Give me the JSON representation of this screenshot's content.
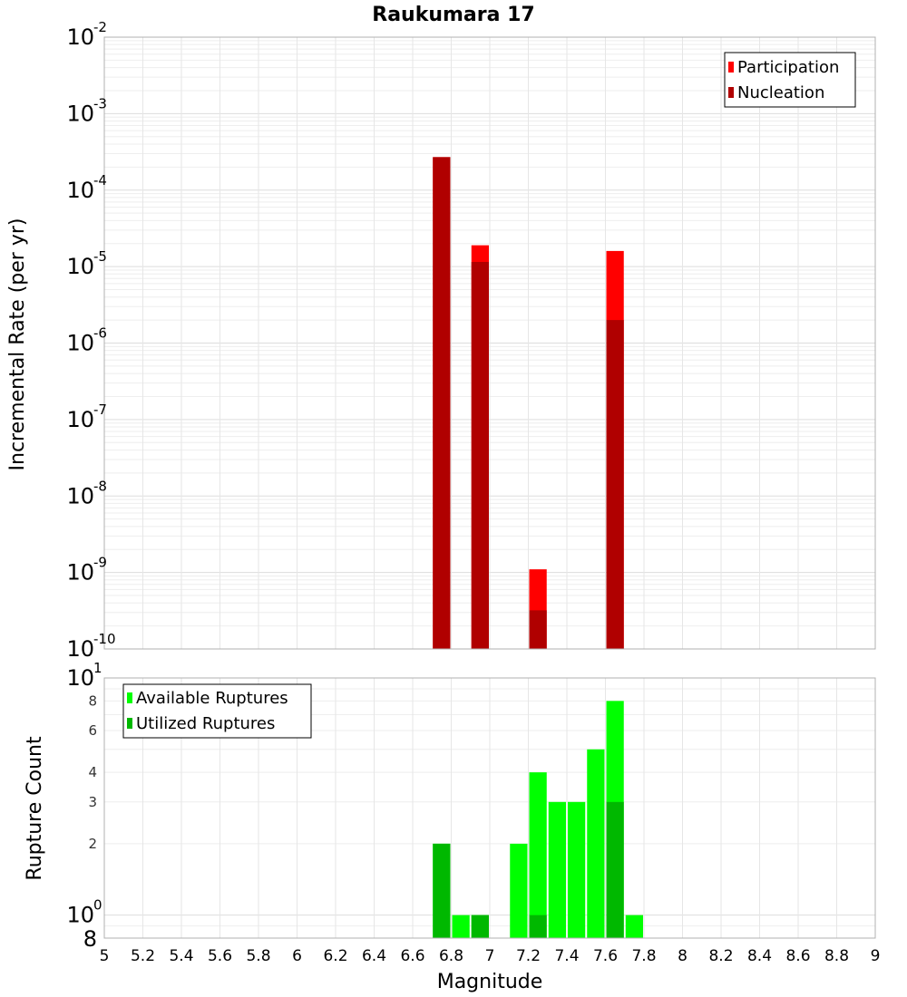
{
  "chart_data": [
    {
      "type": "bar",
      "title": "Raukumara 17",
      "xlabel": "",
      "ylabel": "Incremental Rate (per yr)",
      "yscale": "log",
      "xlim": [
        5,
        9
      ],
      "ylim": [
        1e-10,
        0.01
      ],
      "y_ticks": [
        {
          "base": "10",
          "exp": "-10"
        },
        {
          "base": "10",
          "exp": "-9"
        },
        {
          "base": "10",
          "exp": "-8"
        },
        {
          "base": "10",
          "exp": "-7"
        },
        {
          "base": "10",
          "exp": "-6"
        },
        {
          "base": "10",
          "exp": "-5"
        },
        {
          "base": "10",
          "exp": "-4"
        },
        {
          "base": "10",
          "exp": "-3"
        },
        {
          "base": "10",
          "exp": "-2"
        }
      ],
      "grid": true,
      "legend_position": "top-right",
      "series": [
        {
          "name": "Participation",
          "color": "#ff0000",
          "x": [
            6.75,
            6.95,
            7.25,
            7.65
          ],
          "values": [
            0.00027,
            1.9e-05,
            1.1e-09,
            1.6e-05
          ]
        },
        {
          "name": "Nucleation",
          "color": "#b00000",
          "x": [
            6.75,
            6.95,
            7.25,
            7.65
          ],
          "values": [
            0.00027,
            1.15e-05,
            3.2e-10,
            2e-06
          ]
        }
      ]
    },
    {
      "type": "bar",
      "xlabel": "Magnitude",
      "ylabel": "Rupture Count",
      "yscale": "log",
      "xlim": [
        5,
        9
      ],
      "x_ticks": [
        "5",
        "5.2",
        "5.4",
        "5.6",
        "5.8",
        "6",
        "6.2",
        "6.4",
        "6.6",
        "6.8",
        "7",
        "7.2",
        "7.4",
        "7.6",
        "7.8",
        "8",
        "8.2",
        "8.4",
        "8.6",
        "8.8",
        "9"
      ],
      "y_power_ticks": [
        {
          "base": "10",
          "exp": "0"
        },
        {
          "base": "10",
          "exp": "1"
        }
      ],
      "y_minor_ticks": [
        "8",
        "2",
        "3",
        "4",
        "6",
        "8"
      ],
      "grid": true,
      "legend_position": "top-left",
      "series": [
        {
          "name": "Available Ruptures",
          "color": "#00ff00",
          "x": [
            6.75,
            6.85,
            6.95,
            7.15,
            7.25,
            7.35,
            7.45,
            7.55,
            7.65,
            7.75
          ],
          "values": [
            2,
            1,
            1,
            2,
            4,
            3,
            3,
            5,
            8,
            1
          ]
        },
        {
          "name": "Utilized Ruptures",
          "color": "#00b800",
          "x": [
            6.75,
            6.95,
            7.25,
            7.65
          ],
          "values": [
            2,
            1,
            1,
            3
          ]
        }
      ]
    }
  ]
}
